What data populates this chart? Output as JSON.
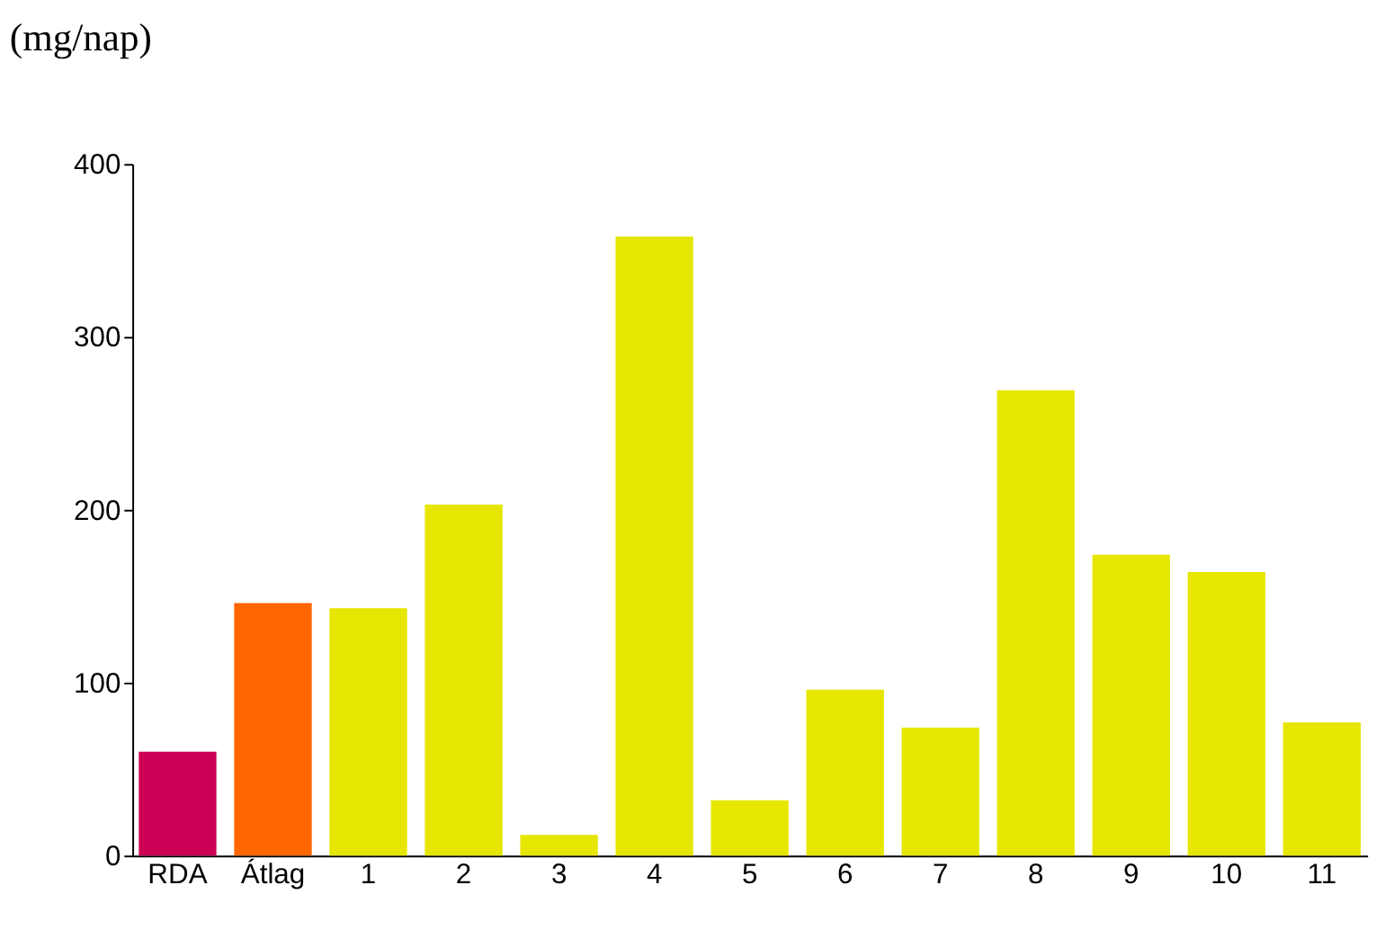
{
  "chart_data": {
    "type": "bar",
    "ylabel": "(mg/nap)",
    "categories": [
      "RDA",
      "Átlag",
      "1",
      "2",
      "3",
      "4",
      "5",
      "6",
      "7",
      "8",
      "9",
      "10",
      "11"
    ],
    "values": [
      60,
      146,
      143,
      203,
      12,
      358,
      32,
      96,
      74,
      269,
      174,
      164,
      77
    ],
    "colors": [
      "#cc0055",
      "#ff6600",
      "#e6e600",
      "#e6e600",
      "#e6e600",
      "#e6e600",
      "#e6e600",
      "#e6e600",
      "#e6e600",
      "#e6e600",
      "#e6e600",
      "#e6e600",
      "#e6e600"
    ],
    "ylim": [
      0,
      400
    ],
    "yticks": [
      0,
      100,
      200,
      300,
      400
    ],
    "grid": false
  }
}
